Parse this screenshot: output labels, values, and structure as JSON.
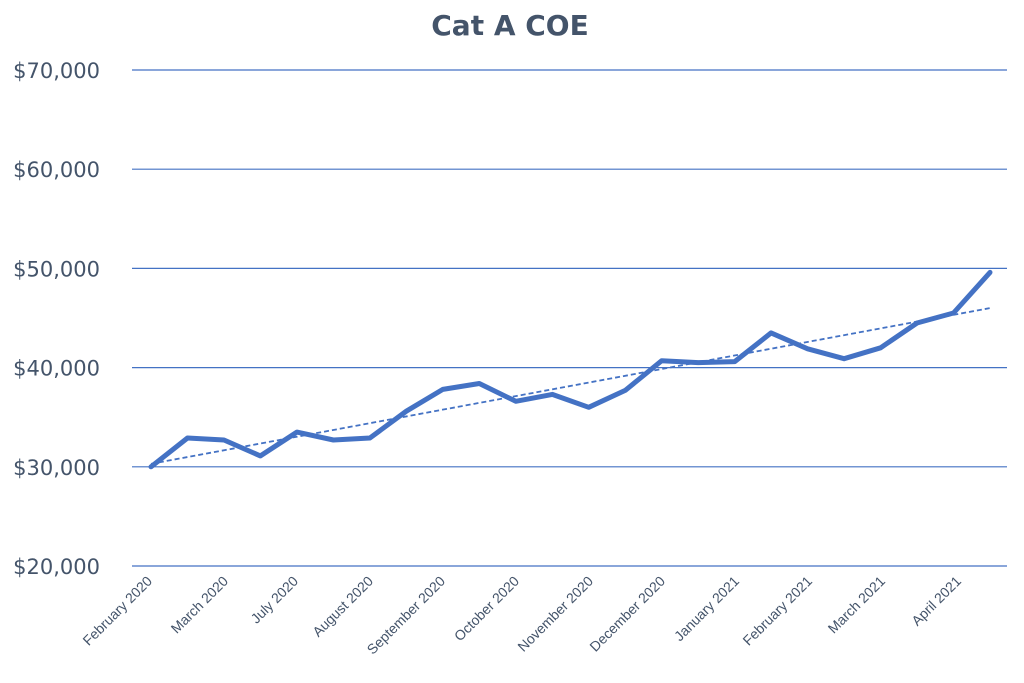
{
  "chart_data": {
    "type": "line",
    "title": "Cat A COE",
    "xlabel": "",
    "ylabel": "",
    "ylim": [
      20000,
      70000
    ],
    "y_ticks": [
      20000,
      30000,
      40000,
      50000,
      60000,
      70000
    ],
    "y_tick_labels": [
      "$20,000",
      "$30,000",
      "$40,000",
      "$50,000",
      "$60,000",
      "$70,000"
    ],
    "x_tick_labels": [
      "February 2020",
      "March 2020",
      "July 2020",
      "August 2020",
      "September 2020",
      "October 2020",
      "November 2020",
      "December 2020",
      "January 2021",
      "February 2021",
      "March 2021",
      "April 2021"
    ],
    "grid": true,
    "legend": "none",
    "series": [
      {
        "values": [
          30000,
          32900,
          32700,
          31100,
          33500,
          32700,
          32900,
          35600,
          37800,
          38400,
          36600,
          37300,
          36000,
          37700,
          40700,
          40500,
          40600,
          43500,
          41900,
          40900,
          42000,
          44500,
          45500,
          49600
        ],
        "color": "#4472c4"
      }
    ],
    "trendline": {
      "style": "dashed",
      "linear": true,
      "start_value": 30300,
      "end_value": 46000
    }
  }
}
